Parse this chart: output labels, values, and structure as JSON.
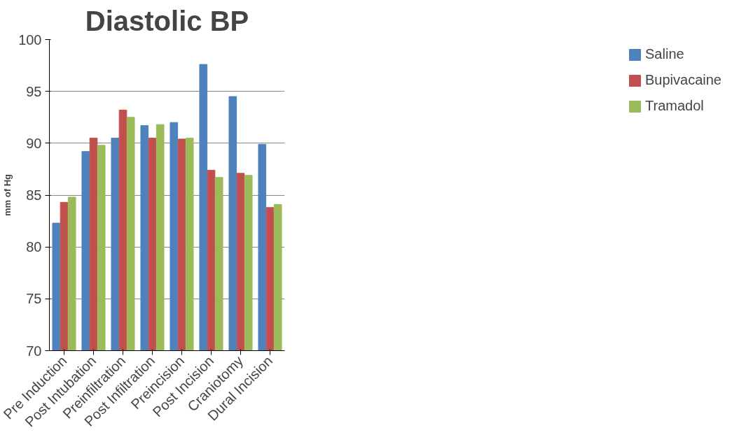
{
  "chart_data": {
    "type": "bar",
    "title": "Diastolic BP",
    "ylabel": "mm of Hg",
    "categories": [
      "Pre Induction",
      "Post Intubation",
      "Preinfiltration",
      "Post Infiltration",
      "Preincision",
      "Post Incision",
      "Craniotomy",
      "Dural Incision"
    ],
    "series": [
      {
        "name": "Saline",
        "color": "#4f81bd",
        "values": [
          82.3,
          89.2,
          90.5,
          91.7,
          92,
          97.6,
          94.5,
          89.9
        ]
      },
      {
        "name": "Bupivacaine",
        "color": "#c0504d",
        "values": [
          84.3,
          90.5,
          93.2,
          90.5,
          90.4,
          87.4,
          87.1,
          83.8
        ]
      },
      {
        "name": "Tramadol",
        "color": "#9bbb59",
        "values": [
          84.8,
          89.8,
          92.5,
          91.8,
          90.5,
          86.7,
          86.9,
          84.1
        ]
      }
    ],
    "ylim": [
      70,
      100
    ],
    "yticks": [
      70,
      75,
      80,
      85,
      90,
      95,
      100
    ],
    "grid": "y",
    "legend": "right"
  }
}
